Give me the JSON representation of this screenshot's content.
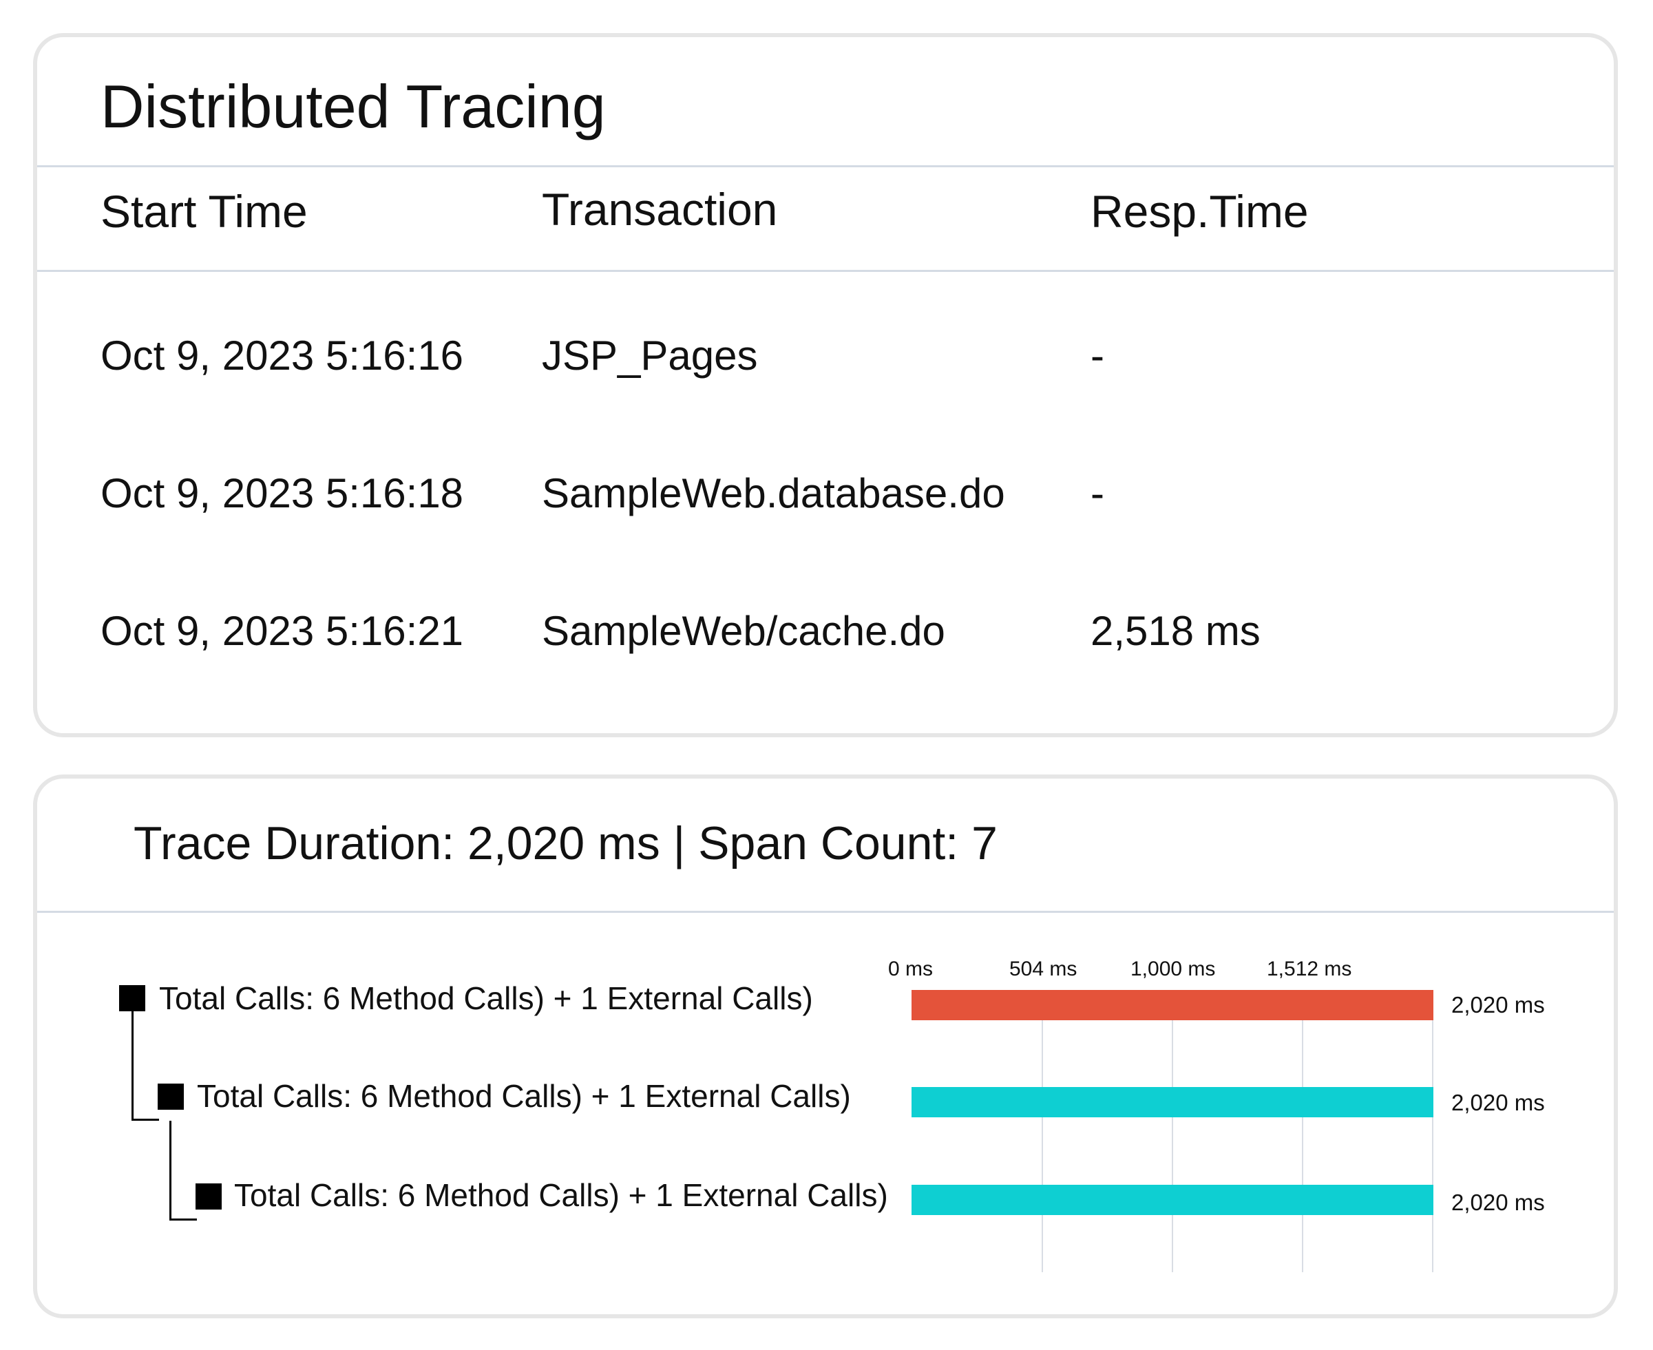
{
  "top_panel": {
    "title": "Distributed Tracing",
    "columns": [
      "Start Time",
      "Transaction",
      "Resp.Time"
    ],
    "rows": [
      {
        "start_time": "Oct 9, 2023 5:16:16",
        "transaction": "JSP_Pages",
        "resp_time": "-"
      },
      {
        "start_time": "Oct 9, 2023 5:16:18",
        "transaction": "SampleWeb.database.do",
        "resp_time": "-"
      },
      {
        "start_time": "Oct 9, 2023 5:16:21",
        "transaction": "SampleWeb/cache.do",
        "resp_time": "2,518 ms"
      }
    ]
  },
  "trace_panel": {
    "title": "Trace Duration: 2,020 ms | Span Count: 7",
    "axis_ticks": [
      "0 ms",
      "504 ms",
      "1,000 ms",
      "1,512 ms"
    ],
    "spans": [
      {
        "label": "Total Calls: 6 Method Calls) + 1 External Calls)",
        "duration": "2,020 ms",
        "color": "#e4533a"
      },
      {
        "label": "Total Calls: 6 Method Calls) + 1 External Calls)",
        "duration": "2,020 ms",
        "color": "#0ecfd2"
      },
      {
        "label": "Total Calls: 6 Method Calls) + 1 External Calls)",
        "duration": "2,020 ms",
        "color": "#0ecfd2"
      }
    ]
  }
}
